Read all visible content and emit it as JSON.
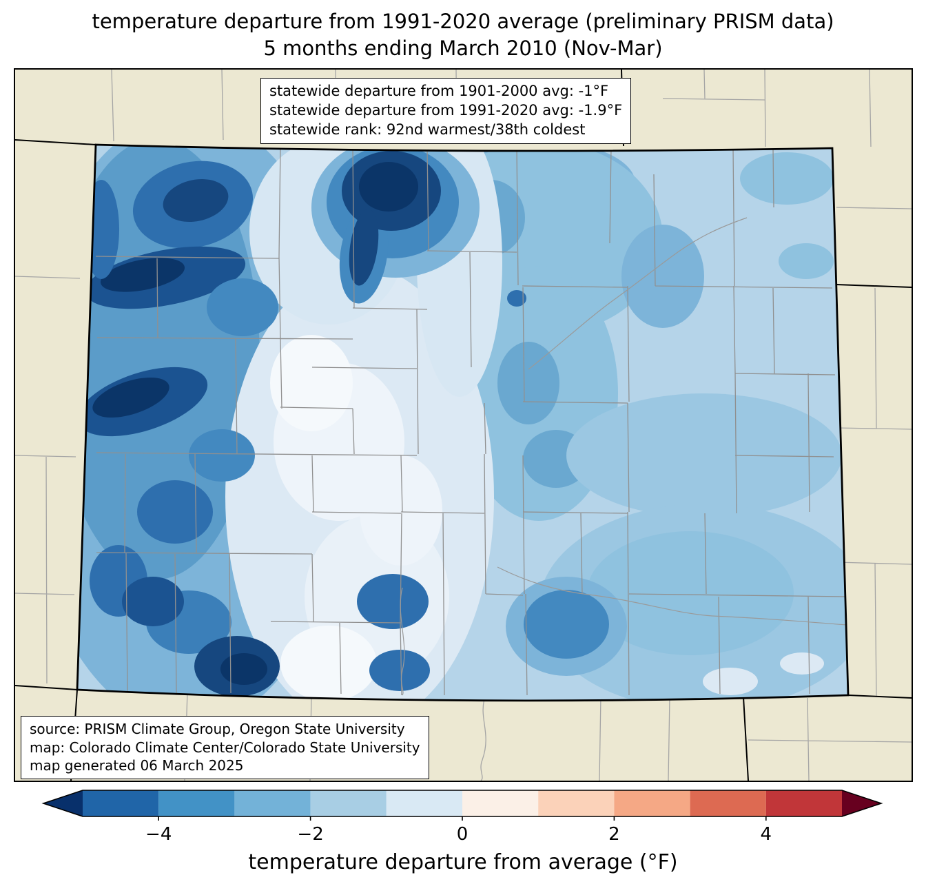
{
  "title": {
    "line1": "temperature departure from 1991-2020 average (preliminary PRISM data)",
    "line2": "5 months ending March 2010 (Nov-Mar)"
  },
  "stats_box": {
    "line1": "statewide departure from 1901-2000 avg: -1°F",
    "line2": "statewide departure from 1991-2020 avg: -1.9°F",
    "line3": "statewide rank: 92nd warmest/38th coldest"
  },
  "source_box": {
    "line1": "source: PRISM Climate Group, Oregon State University",
    "line2": "map: Colorado Climate Center/Colorado State University",
    "line3": "map generated 06 March 2025"
  },
  "map": {
    "region": "Colorado",
    "background_color": "#ece8d2",
    "state_border_color": "#000000",
    "county_line_color": "#909090"
  },
  "colorbar": {
    "label": "temperature departure from average (°F)",
    "range": [
      -5,
      5
    ],
    "ticks": [
      -4,
      -2,
      0,
      2,
      4
    ],
    "tick_labels": [
      "−4",
      "−2",
      "0",
      "2",
      "4"
    ],
    "under_color": "#08306b",
    "over_color": "#67001f",
    "segments": [
      {
        "from": -5,
        "to": -4,
        "color": "#2065a8"
      },
      {
        "from": -4,
        "to": -3,
        "color": "#4292c6"
      },
      {
        "from": -3,
        "to": -2,
        "color": "#73b2d8"
      },
      {
        "from": -2,
        "to": -1,
        "color": "#a8cee4"
      },
      {
        "from": -1,
        "to": 0,
        "color": "#d9e9f4"
      },
      {
        "from": 0,
        "to": 1,
        "color": "#fbf0e7"
      },
      {
        "from": 1,
        "to": 2,
        "color": "#fbd2b9"
      },
      {
        "from": 2,
        "to": 3,
        "color": "#f5a885"
      },
      {
        "from": 3,
        "to": 4,
        "color": "#dd6a52"
      },
      {
        "from": 4,
        "to": 5,
        "color": "#c13639"
      }
    ]
  }
}
